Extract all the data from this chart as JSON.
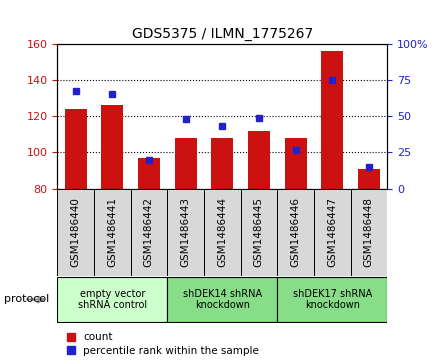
{
  "title": "GDS5375 / ILMN_1775267",
  "samples": [
    "GSM1486440",
    "GSM1486441",
    "GSM1486442",
    "GSM1486443",
    "GSM1486444",
    "GSM1486445",
    "GSM1486446",
    "GSM1486447",
    "GSM1486448"
  ],
  "counts": [
    124,
    126,
    97,
    108,
    108,
    112,
    108,
    156,
    91
  ],
  "percentile_ranks": [
    67,
    65,
    20,
    48,
    43,
    49,
    27,
    75,
    15
  ],
  "ylim_left": [
    80,
    160
  ],
  "ylim_right": [
    0,
    100
  ],
  "yticks_left": [
    80,
    100,
    120,
    140,
    160
  ],
  "yticks_right": [
    0,
    25,
    50,
    75,
    100
  ],
  "bar_color": "#cc1111",
  "dot_color": "#2222cc",
  "groups": [
    {
      "label": "empty vector\nshRNA control",
      "start": 0,
      "end": 3,
      "color": "#ccffcc"
    },
    {
      "label": "shDEK14 shRNA\nknockdown",
      "start": 3,
      "end": 6,
      "color": "#88dd88"
    },
    {
      "label": "shDEK17 shRNA\nknockdown",
      "start": 6,
      "end": 9,
      "color": "#88dd88"
    }
  ],
  "protocol_label": "protocol",
  "legend_count_label": "count",
  "legend_percentile_label": "percentile rank within the sample",
  "sample_box_color": "#d8d8d8",
  "plot_bg": "#ffffff",
  "title_fontsize": 10,
  "tick_fontsize": 8,
  "label_fontsize": 7.5
}
